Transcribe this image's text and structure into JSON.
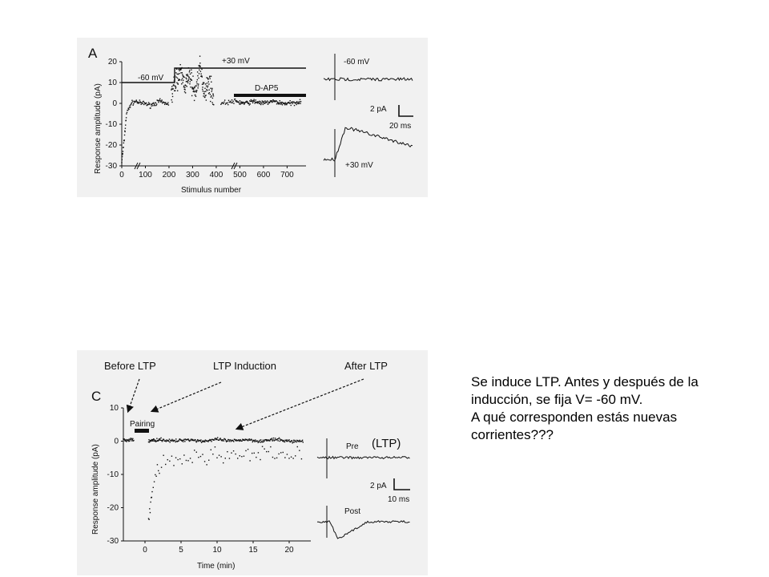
{
  "panel_a": {
    "letter": "A",
    "holding_low": "-60 mV",
    "holding_high": "+30 mV",
    "drug": "D-AP5",
    "ylabel": "Response amplitude (pA)",
    "xlabel": "Stimulus number",
    "yticks": [
      "20",
      "10",
      "0",
      "-10",
      "-20",
      "-30"
    ],
    "xticks": [
      "0",
      "100",
      "200",
      "300",
      "400",
      "500",
      "600",
      "700"
    ],
    "trace_top": "-60 mV",
    "trace_bottom": "+30 mV",
    "scale_y": "2 pA",
    "scale_x": "20 ms"
  },
  "panel_c": {
    "letter": "C",
    "before": "Before LTP",
    "induction": "LTP Induction",
    "after": "After LTP",
    "pairing": "Pairing",
    "ltp_tag": "(LTP)",
    "ylabel": "Response amplitude (pA)",
    "xlabel": "Time (min)",
    "yticks": [
      "10",
      "0",
      "-10",
      "-20",
      "-30"
    ],
    "xticks": [
      "0",
      "5",
      "10",
      "15",
      "20"
    ],
    "trace_top": "Pre",
    "trace_bottom": "Post",
    "scale_y": "2 pA",
    "scale_x": "10 ms"
  },
  "question": {
    "line1": "Se induce LTP. Antes y después de la",
    "line2": "inducción, se fija V= -60 mV.",
    "line3": "A qué corresponden estás nuevas",
    "line4": "corrientes???"
  },
  "chart_data": [
    {
      "type": "scatter",
      "title": "A",
      "xlabel": "Stimulus number",
      "ylabel": "Response amplitude (pA)",
      "xlim": [
        0,
        780
      ],
      "ylim": [
        -30,
        20
      ],
      "x_ticks": [
        0,
        100,
        200,
        300,
        400,
        500,
        600,
        700
      ],
      "y_ticks": [
        20,
        10,
        0,
        -10,
        -20,
        -30
      ],
      "annotations": [
        "-60 mV",
        "+30 mV",
        "D-AP5"
      ],
      "series": [
        {
          "x": [
            0,
            10,
            20,
            40,
            60,
            80,
            100,
            120,
            140,
            160,
            180,
            200
          ],
          "y": [
            -28,
            -18,
            -5,
            0,
            1,
            0,
            0,
            -1,
            0,
            1,
            0,
            0
          ]
        },
        {
          "x": [
            210,
            230,
            250,
            270,
            290,
            310,
            330,
            350,
            370,
            390
          ],
          "y": [
            3,
            12,
            14,
            9,
            13,
            4,
            17,
            6,
            10,
            2
          ]
        },
        {
          "x": [
            420,
            480,
            520,
            560,
            600,
            640,
            680,
            720,
            760
          ],
          "y": [
            0,
            1,
            0,
            1,
            0,
            1,
            0,
            0,
            1
          ]
        }
      ]
    },
    {
      "type": "scatter",
      "title": "C",
      "xlabel": "Time (min)",
      "ylabel": "Response amplitude (pA)",
      "xlim": [
        -3,
        23
      ],
      "ylim": [
        -30,
        10
      ],
      "x_ticks": [
        0,
        5,
        10,
        15,
        20
      ],
      "y_ticks": [
        10,
        0,
        -10,
        -20,
        -30
      ],
      "annotations": [
        "Before LTP",
        "LTP Induction",
        "After LTP",
        "Pairing"
      ],
      "series": [
        {
          "x": [
            -3,
            -2.5,
            -2,
            -1.5
          ],
          "y": [
            0.5,
            0,
            0.5,
            0
          ]
        },
        {
          "x": [
            0.5,
            1,
            2,
            4,
            6,
            8,
            10,
            12,
            14,
            16,
            18,
            20,
            22
          ],
          "y": [
            -25,
            -14,
            -8,
            -6,
            -5,
            -5,
            -4,
            -4,
            -5,
            -4,
            -4,
            -4,
            -4
          ]
        },
        {
          "x": [
            0.5,
            2,
            4,
            6,
            8,
            10,
            12,
            14,
            16,
            18,
            20,
            22
          ],
          "y": [
            0,
            0.5,
            0,
            0.5,
            0,
            0.5,
            0,
            0.5,
            0,
            0.5,
            0,
            0
          ]
        }
      ]
    }
  ]
}
